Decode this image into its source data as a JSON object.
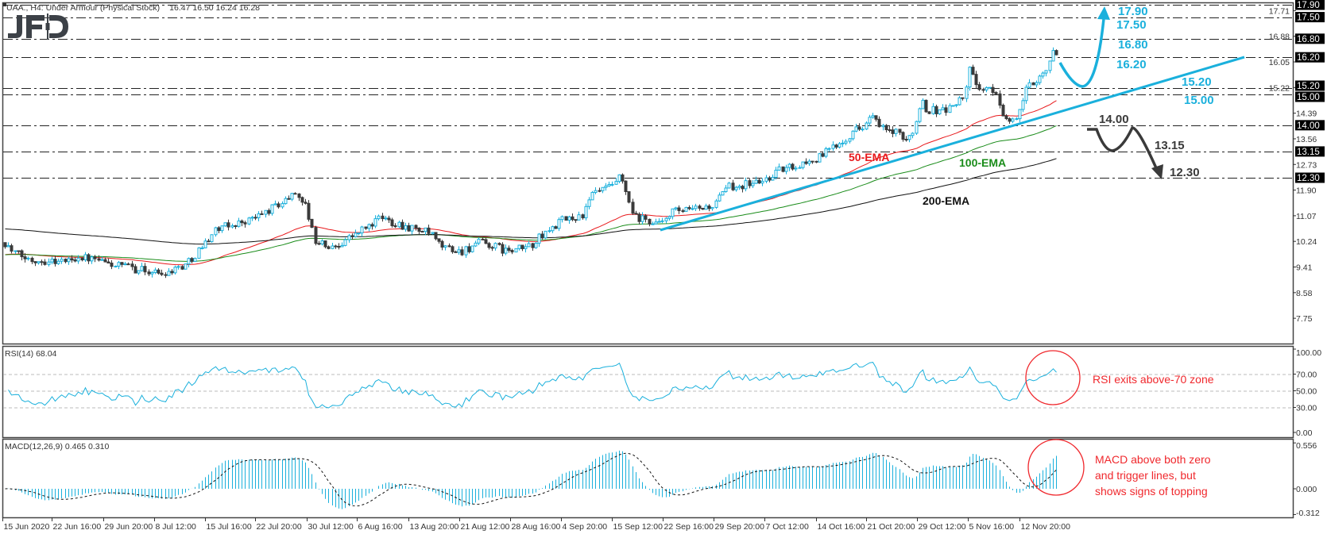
{
  "header": {
    "symbol_line": "UAA., H4:  Under Armour (Physical Stock)",
    "ohlc": "16.47 16.50 16.24 16.28"
  },
  "logo": "JFD",
  "colors": {
    "bull": "#1ab0dc",
    "bear": "#3a3a3a",
    "trend": "#1ab0dc",
    "note": "#f0282d",
    "level_box": "#000000"
  },
  "chart_data": {
    "type": "candlestick",
    "title": "UAA., H4:  Under Armour (Physical Stock)",
    "price_ticks": [
      "17.71",
      "16.88",
      "16.05",
      "15.22",
      "14.39",
      "13.56",
      "12.73",
      "11.90",
      "11.07",
      "10.24",
      "9.41",
      "8.58",
      "7.75"
    ],
    "levels": [
      "17.90",
      "17.50",
      "16.80",
      "16.20",
      "15.20",
      "15.00",
      "14.00",
      "13.15",
      "12.30"
    ],
    "time_ticks": [
      "15 Jun 2020",
      "22 Jun 16:00",
      "29 Jun 20:00",
      "8 Jul 12:00",
      "15 Jul 16:00",
      "22 Jul 20:00",
      "30 Jul 12:00",
      "6 Aug 16:00",
      "13 Aug 20:00",
      "21 Aug 12:00",
      "28 Aug 16:00",
      "4 Sep 20:00",
      "15 Sep 12:00",
      "22 Sep 16:00",
      "29 Sep 20:00",
      "7 Oct 12:00",
      "14 Oct 16:00",
      "21 Oct 20:00",
      "29 Oct 12:00",
      "5 Nov 16:00",
      "12 Nov 20:00"
    ],
    "close_path": [
      [
        "15 Jun 00:00",
        10.3
      ],
      [
        "16 Jun 12:00",
        9.9
      ],
      [
        "19 Jun 00:00",
        9.65
      ],
      [
        "24 Jun 12:00",
        9.6
      ],
      [
        "26 Jun 12:00",
        9.75
      ],
      [
        "1 Jul 00:00",
        9.5
      ],
      [
        "9 Jul 12:00",
        9.2
      ],
      [
        "13 Jul 00:00",
        9.5
      ],
      [
        "15 Jul 16:00",
        10.2
      ],
      [
        "17 Jul 00:00",
        10.6
      ],
      [
        "22 Jul 20:00",
        11.0
      ],
      [
        "27 Jul 12:00",
        11.6
      ],
      [
        "29 Jul 00:00",
        11.85
      ],
      [
        "30 Jul 12:00",
        11.3
      ],
      [
        "31 Jul 12:00",
        10.3
      ],
      [
        "3 Aug 00:00",
        10.0
      ],
      [
        "5 Aug 00:00",
        10.3
      ],
      [
        "6 Aug 16:00",
        10.5
      ],
      [
        "10 Aug 00:00",
        11.0
      ],
      [
        "13 Aug 20:00",
        10.7
      ],
      [
        "17 Aug 00:00",
        10.5
      ],
      [
        "18 Aug 12:00",
        10.1
      ],
      [
        "21 Aug 12:00",
        9.9
      ],
      [
        "24 Aug 12:00",
        10.2
      ],
      [
        "28 Aug 16:00",
        9.9
      ],
      [
        "31 Aug 12:00",
        10.1
      ],
      [
        "2 Sep 00:00",
        10.4
      ],
      [
        "4 Sep 20:00",
        10.9
      ],
      [
        "9 Sep 12:00",
        11.1
      ],
      [
        "11 Sep 12:00",
        11.8
      ],
      [
        "15 Sep 12:00",
        12.0
      ],
      [
        "16 Sep 12:00",
        12.3
      ],
      [
        "17 Sep 12:00",
        11.8
      ],
      [
        "18 Sep 12:00",
        11.0
      ],
      [
        "22 Sep 16:00",
        10.8
      ],
      [
        "23 Sep 16:00",
        11.2
      ],
      [
        "25 Sep 16:00",
        11.2
      ],
      [
        "29 Sep 20:00",
        11.4
      ],
      [
        "2 Oct 00:00",
        12.0
      ],
      [
        "7 Oct 12:00",
        12.2
      ],
      [
        "9 Oct 00:00",
        12.5
      ],
      [
        "14 Oct 16:00",
        12.9
      ],
      [
        "16 Oct 12:00",
        13.2
      ],
      [
        "20 Oct 00:00",
        13.8
      ],
      [
        "21 Oct 20:00",
        14.1
      ],
      [
        "22 Oct 20:00",
        14.3
      ],
      [
        "23 Oct 20:00",
        13.9
      ],
      [
        "26 Oct 20:00",
        13.7
      ],
      [
        "27 Oct 20:00",
        13.4
      ],
      [
        "29 Oct 12:00",
        14.2
      ],
      [
        "30 Oct 04:00",
        15.0
      ],
      [
        "30 Oct 16:00",
        14.5
      ],
      [
        "2 Nov 16:00",
        14.5
      ],
      [
        "5 Nov 00:00",
        14.9
      ],
      [
        "6 Nov 00:00",
        15.9
      ],
      [
        "6 Nov 16:00",
        15.3
      ],
      [
        "9 Nov 16:00",
        15.0
      ],
      [
        "10 Nov 16:00",
        14.3
      ],
      [
        "11 Nov 16:00",
        14.0
      ],
      [
        "12 Nov 20:00",
        14.5
      ],
      [
        "13 Nov 20:00",
        15.2
      ],
      [
        "16 Nov 20:00",
        15.9
      ],
      [
        "17 Nov 20:00",
        16.6
      ],
      [
        "18 Nov 08:00",
        16.28
      ]
    ],
    "ema": [
      {
        "name": "50-EMA",
        "period": 50,
        "start": 9.8,
        "color": "#e8191c"
      },
      {
        "name": "100-EMA",
        "period": 100,
        "start": 9.8,
        "color": "#1a8c1a"
      },
      {
        "name": "200-EMA",
        "period": 200,
        "start": 10.65,
        "color": "#111111"
      }
    ],
    "rsi": {
      "label": "RSI(14) 68.04",
      "period": 14,
      "levels": [
        70,
        50,
        30
      ],
      "ticks": [
        "100.00",
        "70.00",
        "50.00",
        "30.00",
        "0.00"
      ]
    },
    "macd": {
      "label": "MACD(12,26,9) 0.465 0.310",
      "fast": 12,
      "slow": 26,
      "signal": 9,
      "ticks": [
        "0.556",
        "0.000",
        "-0.312"
      ]
    }
  },
  "annotations": {
    "bull_targets": [
      "17.90",
      "17.50",
      "16.80",
      "16.20",
      "15.20",
      "15.00"
    ],
    "bear_targets": [
      "14.00",
      "13.15",
      "12.30"
    ],
    "rsi_note": "RSI exits above-70 zone",
    "macd_note": [
      "MACD above both zero",
      "and trigger lines, but",
      "shows  signs of topping"
    ]
  }
}
